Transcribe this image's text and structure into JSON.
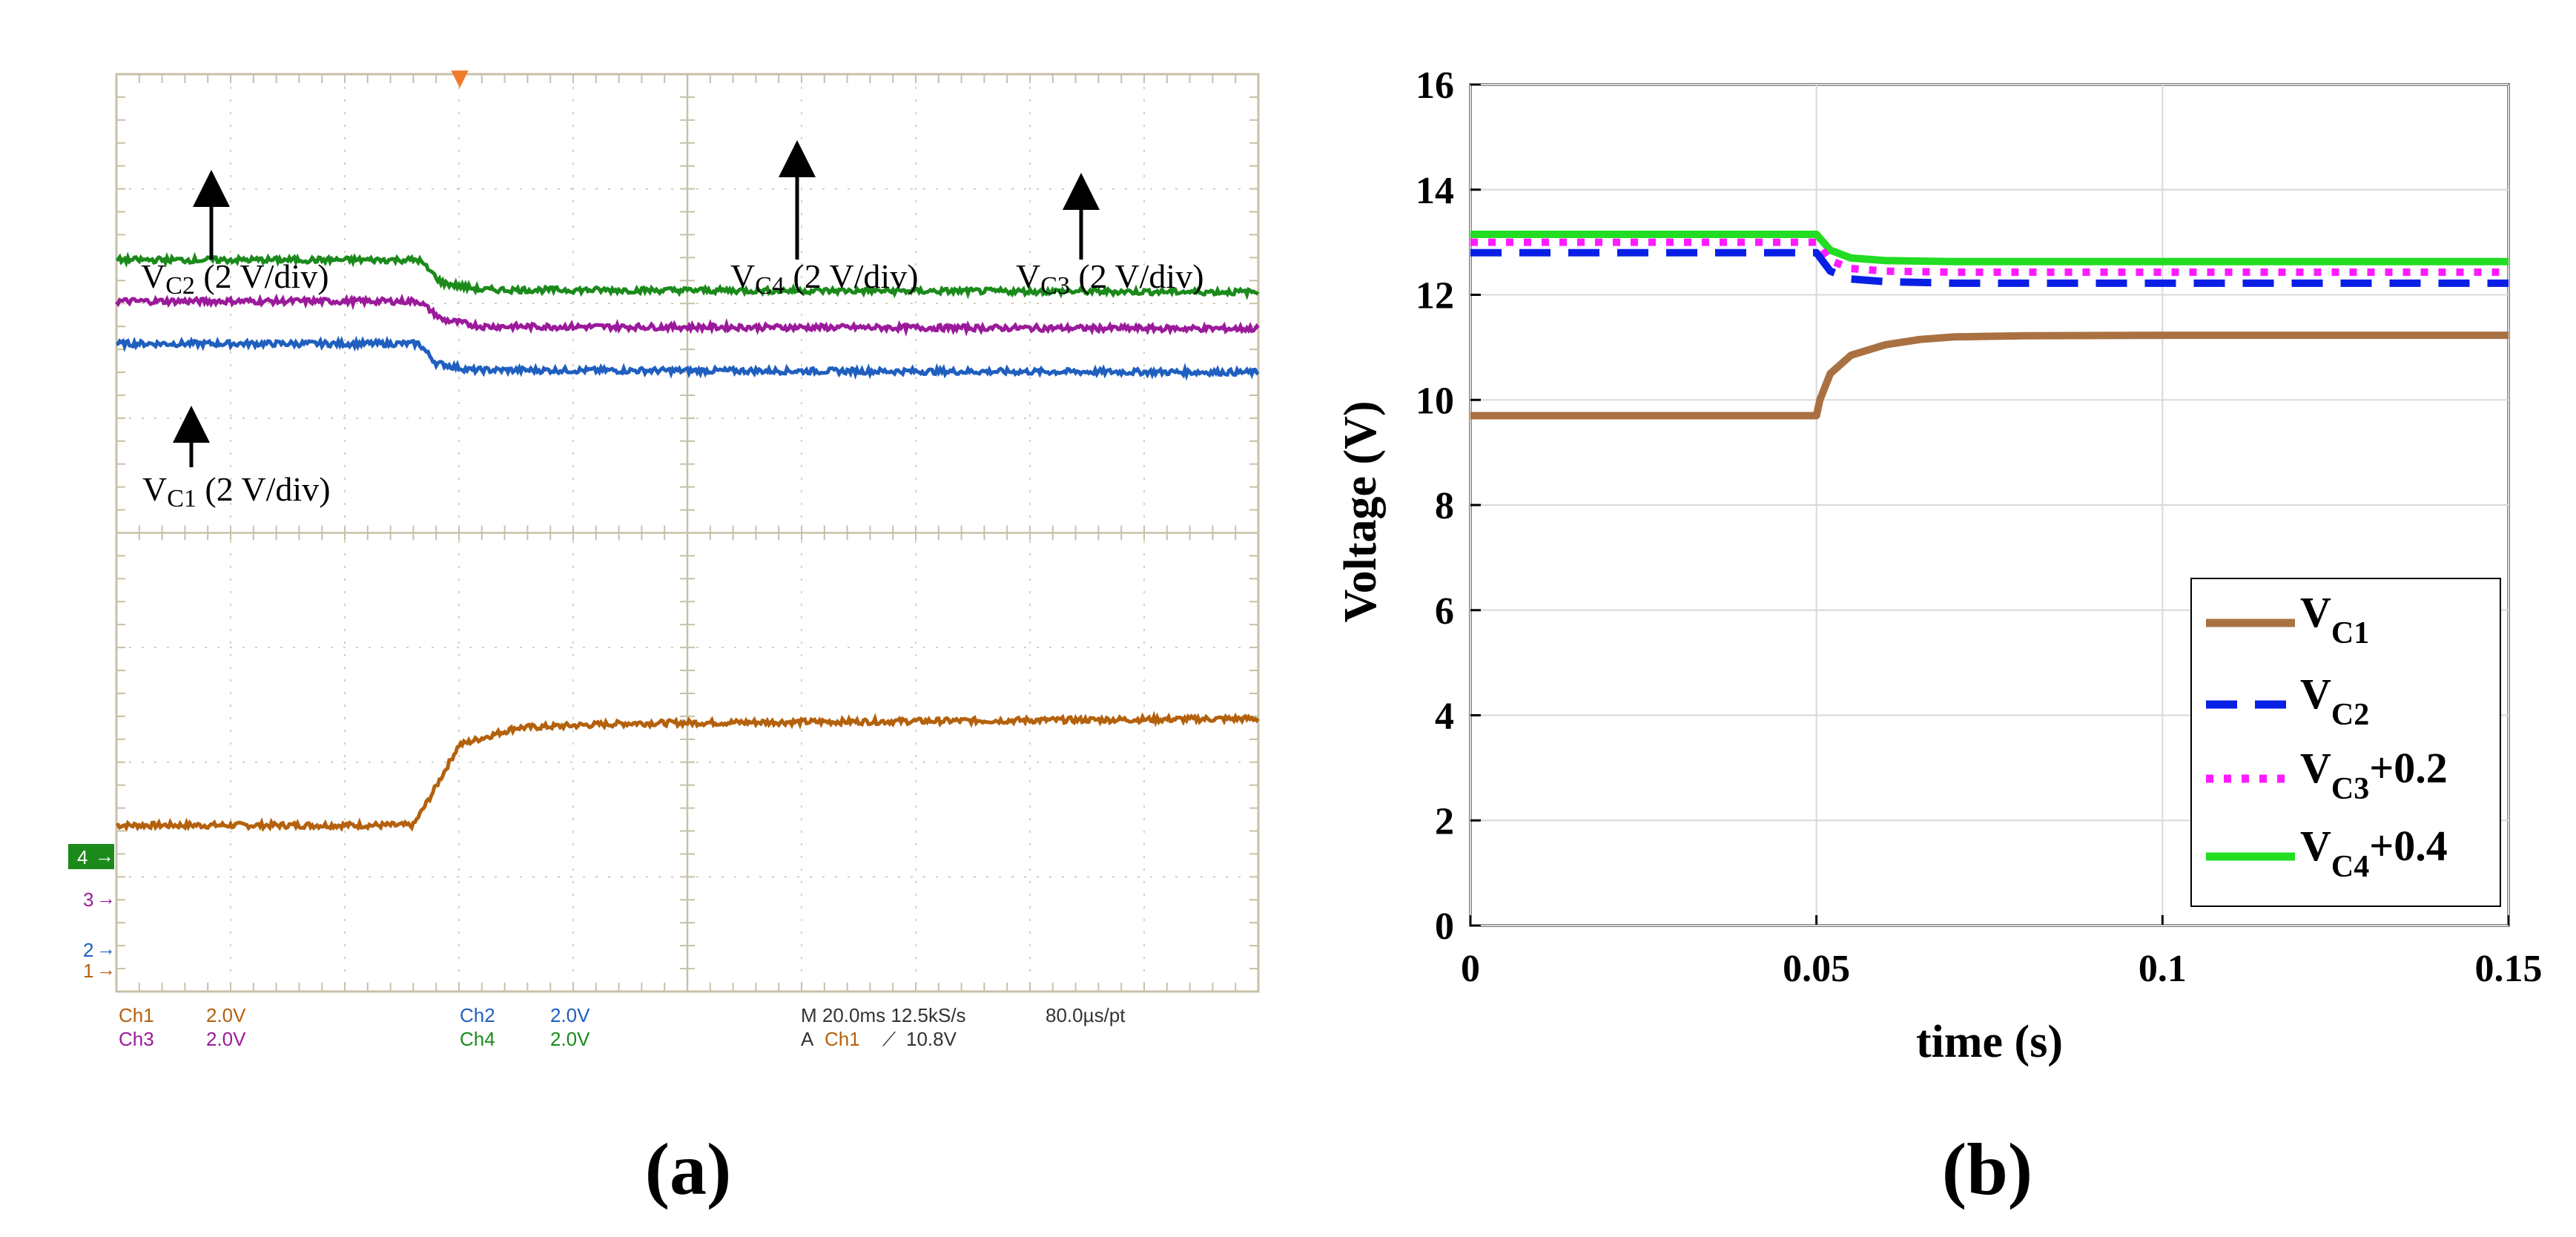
{
  "chart_data": [
    {
      "panel": "a",
      "type": "line",
      "title": "",
      "caption": "(a)",
      "grid": true,
      "x_divisions": 10,
      "y_divisions": 8,
      "trigger_marker": "▼",
      "series": [
        {
          "name": "Ch1",
          "label": "V",
          "sub": "C1",
          "suffix": " (2 V/div)",
          "color": "#b4610d",
          "points": [
            [
              0,
              1.45
            ],
            [
              2.6,
              1.45
            ],
            [
              2.75,
              1.7
            ],
            [
              3.0,
              2.15
            ],
            [
              3.5,
              2.3
            ],
            [
              4.5,
              2.34
            ],
            [
              10,
              2.38
            ]
          ]
        },
        {
          "name": "Ch2",
          "label": "V",
          "sub": "C2",
          "suffix": " (2 V/div)",
          "color": "#1f5fbf",
          "points": [
            [
              0,
              5.65
            ],
            [
              2.65,
              5.65
            ],
            [
              2.8,
              5.48
            ],
            [
              3.1,
              5.42
            ],
            [
              10,
              5.4
            ]
          ]
        },
        {
          "name": "Ch3",
          "label": "V",
          "sub": "C3",
          "suffix": " (2 V/div)",
          "color": "#9b1a9b",
          "points": [
            [
              0,
              6.02
            ],
            [
              2.65,
              6.02
            ],
            [
              2.85,
              5.86
            ],
            [
              3.2,
              5.8
            ],
            [
              10,
              5.78
            ]
          ]
        },
        {
          "name": "Ch4",
          "label": "V",
          "sub": "C4",
          "suffix": " (2 V/div)",
          "color": "#1b8a1b",
          "points": [
            [
              0,
              6.38
            ],
            [
              2.65,
              6.38
            ],
            [
              2.85,
              6.18
            ],
            [
              3.2,
              6.12
            ],
            [
              10,
              6.1
            ]
          ]
        }
      ],
      "channel_markers": [
        "4",
        "3",
        "2",
        "1"
      ],
      "readout": {
        "ch1": "Ch1",
        "ch1_scale": "2.0V",
        "ch3": "Ch3",
        "ch3_scale": "2.0V",
        "ch2": "Ch2",
        "ch2_scale": "2.0V",
        "ch4": "Ch4",
        "ch4_scale": "2.0V",
        "timebase": "M 20.0ms 12.5kS/s",
        "pt": "80.0µs/pt",
        "trig_a": "A",
        "trig_ch": "Ch1",
        "trig_slope": "⟋",
        "trig_level": "10.8V"
      }
    },
    {
      "panel": "b",
      "type": "line",
      "title": "",
      "caption": "(b)",
      "xlabel": "time (s)",
      "ylabel": "Voltage (V)",
      "xlim": [
        0,
        0.15
      ],
      "ylim": [
        0,
        16
      ],
      "xticks": [
        0,
        0.05,
        0.1,
        0.15
      ],
      "xtick_labels": [
        "0",
        "0.05",
        "0.1",
        "0.15"
      ],
      "yticks": [
        0,
        2,
        4,
        6,
        8,
        10,
        12,
        14,
        16
      ],
      "ytick_labels": [
        "0",
        "2",
        "4",
        "6",
        "8",
        "10",
        "12",
        "14",
        "16"
      ],
      "grid": true,
      "legend_position": "bottom-right",
      "series": [
        {
          "name": "VC1",
          "label": "V",
          "sub": "C1",
          "suffix": "",
          "color": "#a97142",
          "style": "solid",
          "x": [
            0,
            0.05,
            0.0505,
            0.052,
            0.055,
            0.06,
            0.065,
            0.07,
            0.08,
            0.1,
            0.15
          ],
          "y": [
            9.7,
            9.7,
            10.0,
            10.5,
            10.85,
            11.05,
            11.15,
            11.2,
            11.22,
            11.23,
            11.23
          ]
        },
        {
          "name": "VC2",
          "label": "V",
          "sub": "C2",
          "suffix": "",
          "color": "#0a1fe6",
          "style": "dashed",
          "x": [
            0,
            0.05,
            0.052,
            0.055,
            0.06,
            0.07,
            0.15
          ],
          "y": [
            12.8,
            12.8,
            12.45,
            12.3,
            12.25,
            12.22,
            12.22
          ]
        },
        {
          "name": "VC3+0.2",
          "label": "V",
          "sub": "C3",
          "suffix": "+0.2",
          "color": "#ff1aff",
          "style": "dotted",
          "x": [
            0,
            0.05,
            0.052,
            0.055,
            0.06,
            0.07,
            0.15
          ],
          "y": [
            13.0,
            13.0,
            12.65,
            12.5,
            12.45,
            12.43,
            12.43
          ]
        },
        {
          "name": "VC4+0.4",
          "label": "V",
          "sub": "C4",
          "suffix": "+0.4",
          "color": "#22dd22",
          "style": "solid",
          "x": [
            0,
            0.05,
            0.052,
            0.055,
            0.06,
            0.07,
            0.15
          ],
          "y": [
            13.15,
            13.15,
            12.85,
            12.7,
            12.65,
            12.63,
            12.63
          ]
        }
      ]
    }
  ]
}
